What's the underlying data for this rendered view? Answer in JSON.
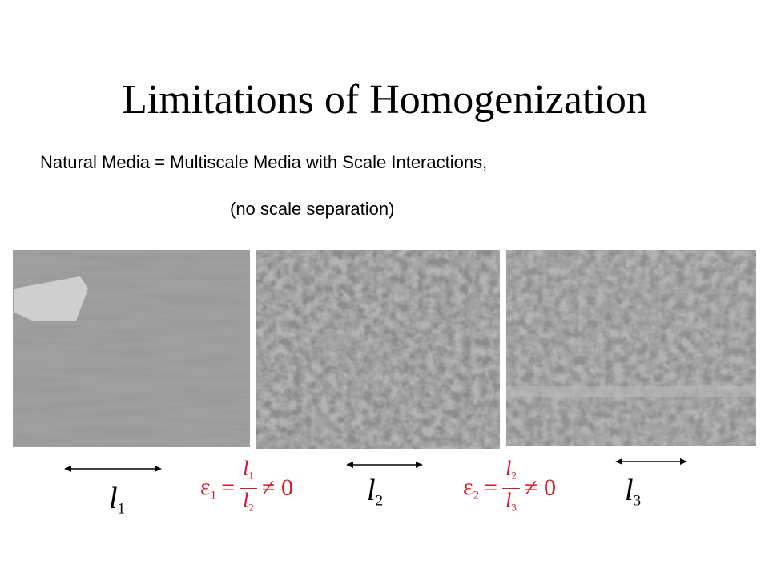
{
  "title": "Limitations of Homogenization",
  "subtitle": [
    "Natural Media = Multiscale Media with Scale Interactions,",
    "(no scale separation)"
  ],
  "scales": [
    {
      "letter": "l",
      "sub": "1"
    },
    {
      "letter": "l",
      "sub": "2"
    },
    {
      "letter": "l",
      "sub": "3"
    }
  ],
  "ratios": [
    {
      "lhs": "ε",
      "lhs_sub": "1",
      "eq": "=",
      "num": "l",
      "num_sub": "1",
      "den": "l",
      "den_sub": "2",
      "rel": "≠ 0"
    },
    {
      "lhs": "ε",
      "lhs_sub": "2",
      "eq": "=",
      "num": "l",
      "num_sub": "2",
      "den": "l",
      "den_sub": "3",
      "rel": "≠ 0"
    }
  ]
}
